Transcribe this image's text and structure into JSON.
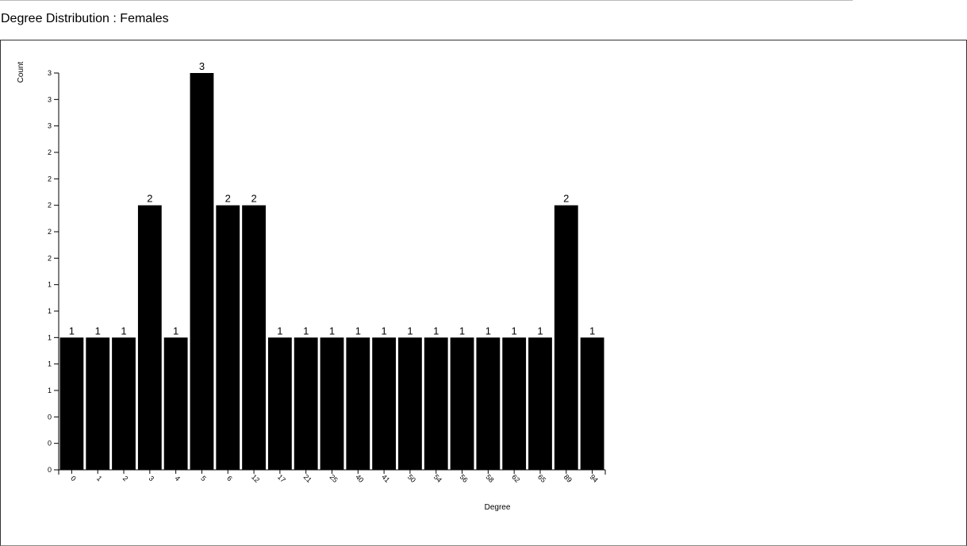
{
  "header": {
    "title": "Degree Distribution : Females"
  },
  "chart_data": {
    "type": "bar",
    "title": "",
    "xlabel": "Degree",
    "ylabel": "Count",
    "categories": [
      "0",
      "1",
      "2",
      "3",
      "4",
      "5",
      "6",
      "12",
      "17",
      "21",
      "25",
      "40",
      "41",
      "50",
      "54",
      "56",
      "58",
      "62",
      "65",
      "89",
      "94"
    ],
    "values": [
      1,
      1,
      1,
      2,
      1,
      3,
      2,
      2,
      1,
      1,
      1,
      1,
      1,
      1,
      1,
      1,
      1,
      1,
      1,
      2,
      1
    ],
    "ylim": [
      0,
      3
    ],
    "y_tick_labels": [
      "0",
      "0",
      "0",
      "1",
      "1",
      "1",
      "1",
      "1",
      "2",
      "2",
      "2",
      "2",
      "2",
      "3",
      "3",
      "3"
    ],
    "bar_color": "#000000",
    "grid": false,
    "legend": "none"
  }
}
